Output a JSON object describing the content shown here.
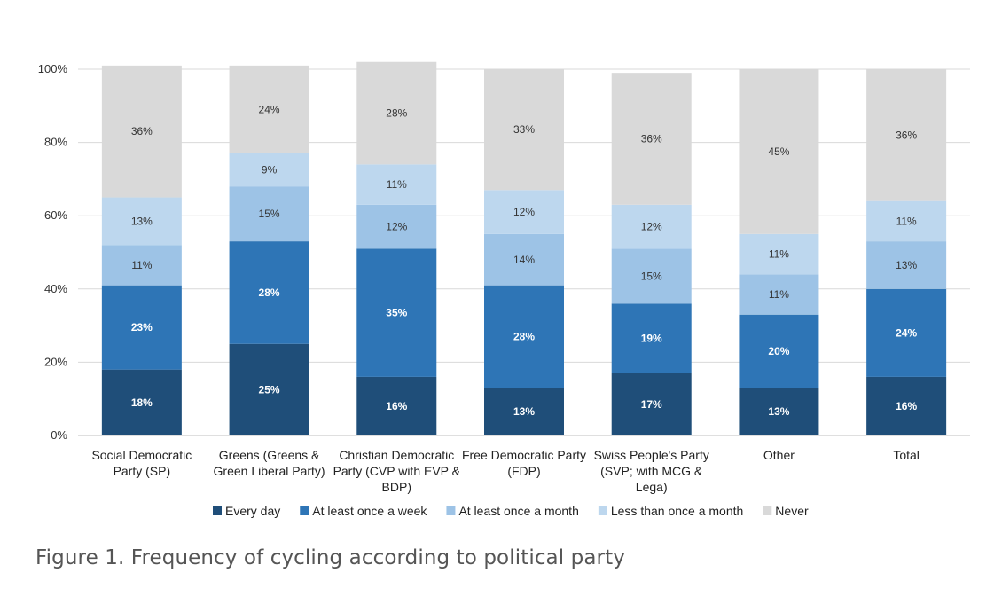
{
  "caption": "Figure 1. Frequency of cycling according to political party",
  "chart_data": {
    "type": "bar",
    "stacked": true,
    "title": "",
    "xlabel": "",
    "ylabel": "",
    "ylim": [
      0,
      100
    ],
    "yticks": [
      "0%",
      "20%",
      "40%",
      "60%",
      "80%",
      "100%"
    ],
    "legend_position": "bottom",
    "grid": true,
    "categories": [
      [
        "Social Democratic",
        "Party (SP)"
      ],
      [
        "Greens (Greens &",
        "Green Liberal Party)"
      ],
      [
        "Christian Democratic",
        "Party (CVP with EVP &",
        "BDP)"
      ],
      [
        "Free Democratic Party",
        "(FDP)"
      ],
      [
        "Swiss People's Party",
        "(SVP; with MCG &",
        "Lega)"
      ],
      [
        "Other"
      ],
      [
        "Total"
      ]
    ],
    "series": [
      {
        "name": "Every day",
        "color": "#1f4e79",
        "label_color": "#ffffff",
        "values": [
          18,
          25,
          16,
          13,
          17,
          13,
          16
        ],
        "labels": [
          "18%",
          "25%",
          "16%",
          "13%",
          "17%",
          "13%",
          "16%"
        ]
      },
      {
        "name": "At least once a week",
        "color": "#2e75b6",
        "label_color": "#ffffff",
        "values": [
          23,
          28,
          35,
          28,
          19,
          20,
          24
        ],
        "labels": [
          "23%",
          "28%",
          "35%",
          "28%",
          "19%",
          "20%",
          "24%"
        ]
      },
      {
        "name": "At least once a month",
        "color": "#9dc3e6",
        "label_color": "#333333",
        "values": [
          11,
          15,
          12,
          14,
          15,
          11,
          13
        ],
        "labels": [
          "11%",
          "15%",
          "12%",
          "14%",
          "15%",
          "11%",
          "13%"
        ]
      },
      {
        "name": "Less than once a month",
        "color": "#bdd7ee",
        "label_color": "#333333",
        "values": [
          13,
          9,
          11,
          12,
          12,
          11,
          11
        ],
        "labels": [
          "13%",
          "9%",
          "11%",
          "12%",
          "12%",
          "11%",
          "11%"
        ]
      },
      {
        "name": "Never",
        "color": "#d9d9d9",
        "label_color": "#333333",
        "values": [
          36,
          24,
          28,
          33,
          36,
          45,
          36
        ],
        "labels": [
          "36%",
          "24%",
          "28%",
          "33%",
          "36%",
          "45%",
          "36%"
        ]
      }
    ]
  }
}
